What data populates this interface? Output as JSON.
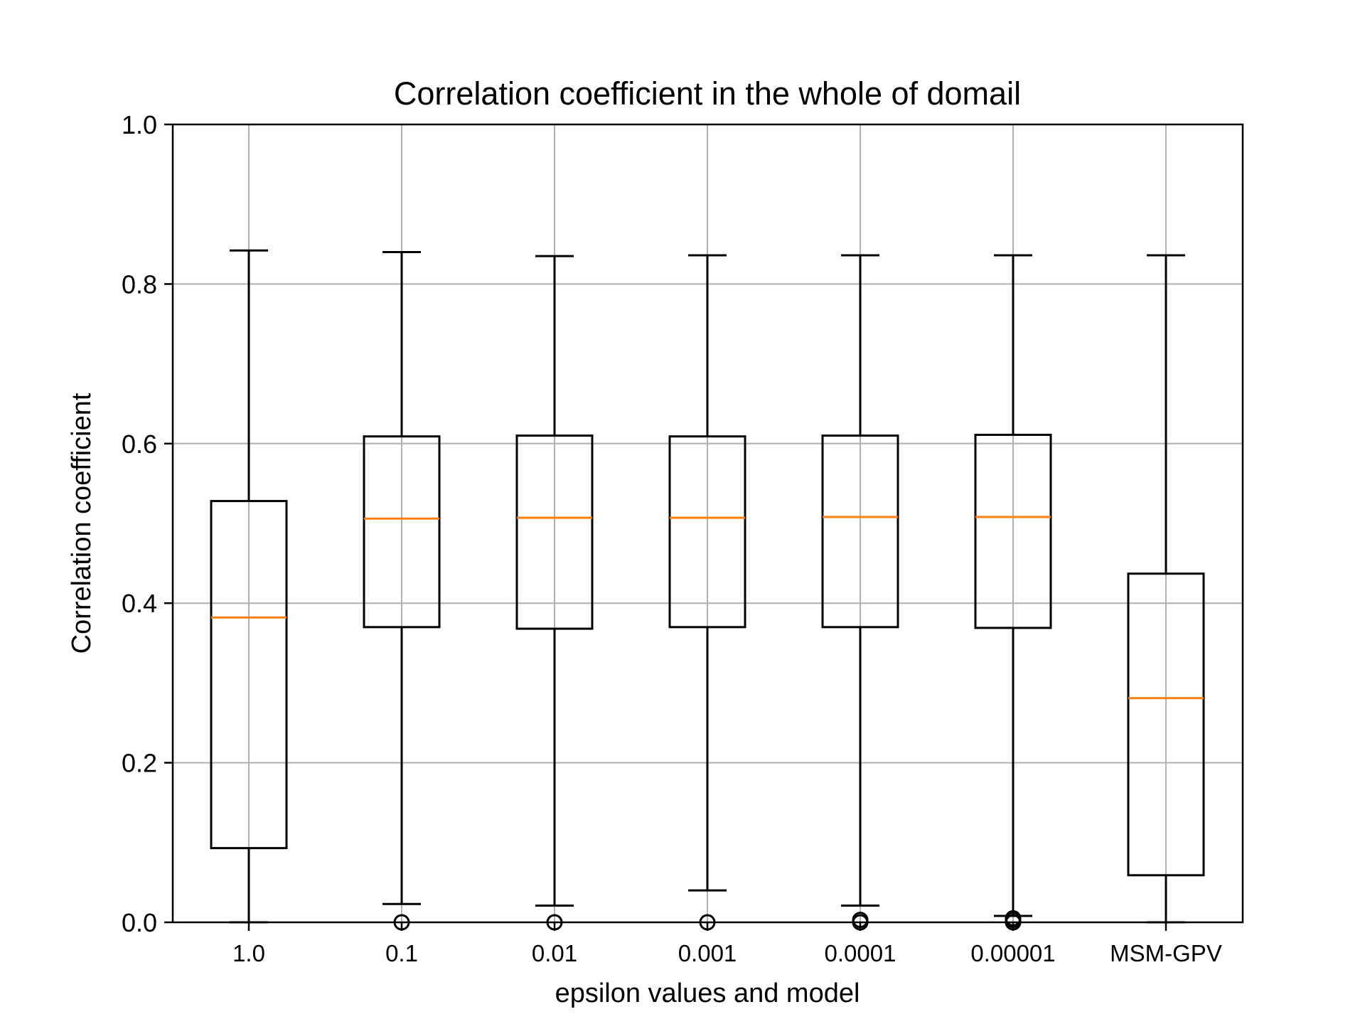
{
  "chart_data": {
    "type": "boxplot",
    "title": "Correlation coefficient in the whole of domail",
    "xlabel": "epsilon values and model",
    "ylabel": "Correlation coefficient",
    "ylim": [
      0.0,
      1.0
    ],
    "yticks": [
      0.0,
      0.2,
      0.4,
      0.6,
      0.8,
      1.0
    ],
    "ytick_labels": [
      "0.0",
      "0.2",
      "0.4",
      "0.6",
      "0.8",
      "1.0"
    ],
    "grid": true,
    "colors": {
      "box": "#000000",
      "median": "#ff7f0e",
      "grid": "#b0b0b0"
    },
    "categories": [
      "1.0",
      "0.1",
      "0.01",
      "0.001",
      "0.0001",
      "0.00001",
      "MSM-GPV"
    ],
    "boxes": [
      {
        "whisker_low": 0.0,
        "q1": 0.093,
        "median": 0.382,
        "q3": 0.528,
        "whisker_high": 0.842,
        "outliers": []
      },
      {
        "whisker_low": 0.023,
        "q1": 0.37,
        "median": 0.506,
        "q3": 0.609,
        "whisker_high": 0.84,
        "outliers": [
          0.0
        ]
      },
      {
        "whisker_low": 0.021,
        "q1": 0.368,
        "median": 0.507,
        "q3": 0.61,
        "whisker_high": 0.835,
        "outliers": [
          0.0
        ]
      },
      {
        "whisker_low": 0.04,
        "q1": 0.37,
        "median": 0.507,
        "q3": 0.609,
        "whisker_high": 0.836,
        "outliers": [
          0.0
        ]
      },
      {
        "whisker_low": 0.021,
        "q1": 0.37,
        "median": 0.508,
        "q3": 0.61,
        "whisker_high": 0.836,
        "outliers": [
          0.0,
          0.003
        ]
      },
      {
        "whisker_low": 0.008,
        "q1": 0.369,
        "median": 0.508,
        "q3": 0.611,
        "whisker_high": 0.836,
        "outliers": [
          0.0,
          0.003,
          0.005
        ]
      },
      {
        "whisker_low": 0.0,
        "q1": 0.059,
        "median": 0.281,
        "q3": 0.437,
        "whisker_high": 0.836,
        "outliers": []
      }
    ]
  }
}
